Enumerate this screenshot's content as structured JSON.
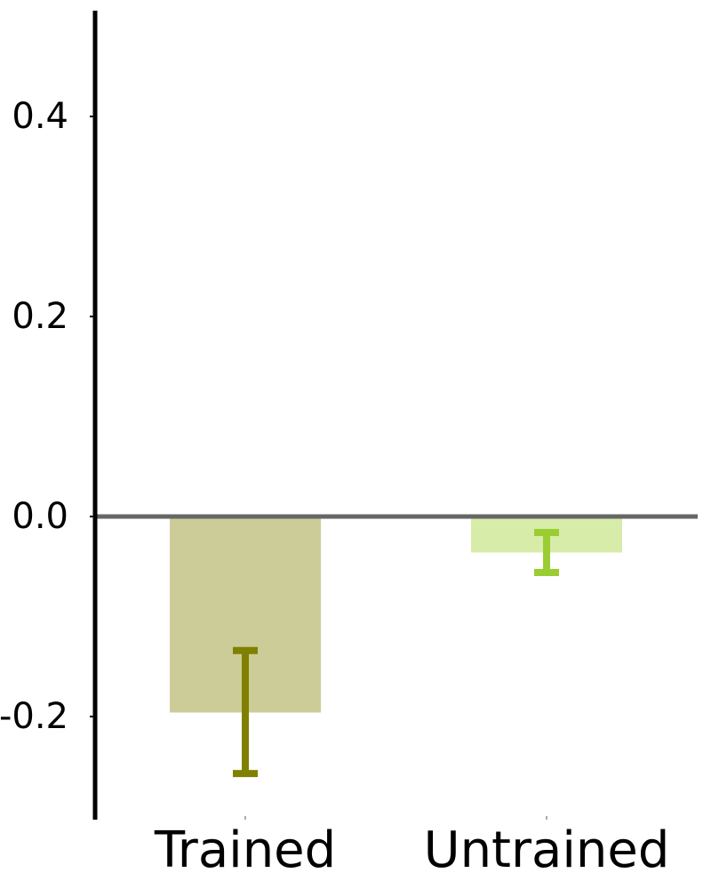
{
  "chart_data": {
    "type": "bar",
    "categories": [
      "Trained",
      "Untrained"
    ],
    "values": [
      -0.196,
      -0.036
    ],
    "error_low": [
      -0.257,
      -0.056
    ],
    "error_high": [
      -0.134,
      -0.016
    ],
    "ylim": [
      -0.3,
      0.5
    ],
    "yticks": [
      -0.2,
      0.0,
      0.2,
      0.4
    ],
    "ytick_labels": [
      "-0.2",
      "0.0",
      "0.2",
      "0.4"
    ],
    "title": "",
    "xlabel": "",
    "ylabel": "",
    "grid": false,
    "zero_line": true,
    "colors": {
      "bar_fill": [
        "#cccc99",
        "#d8ecaa"
      ],
      "error_bar": [
        "#808000",
        "#9acd32"
      ],
      "zero_line": "#666666",
      "axis": "#000000"
    }
  }
}
